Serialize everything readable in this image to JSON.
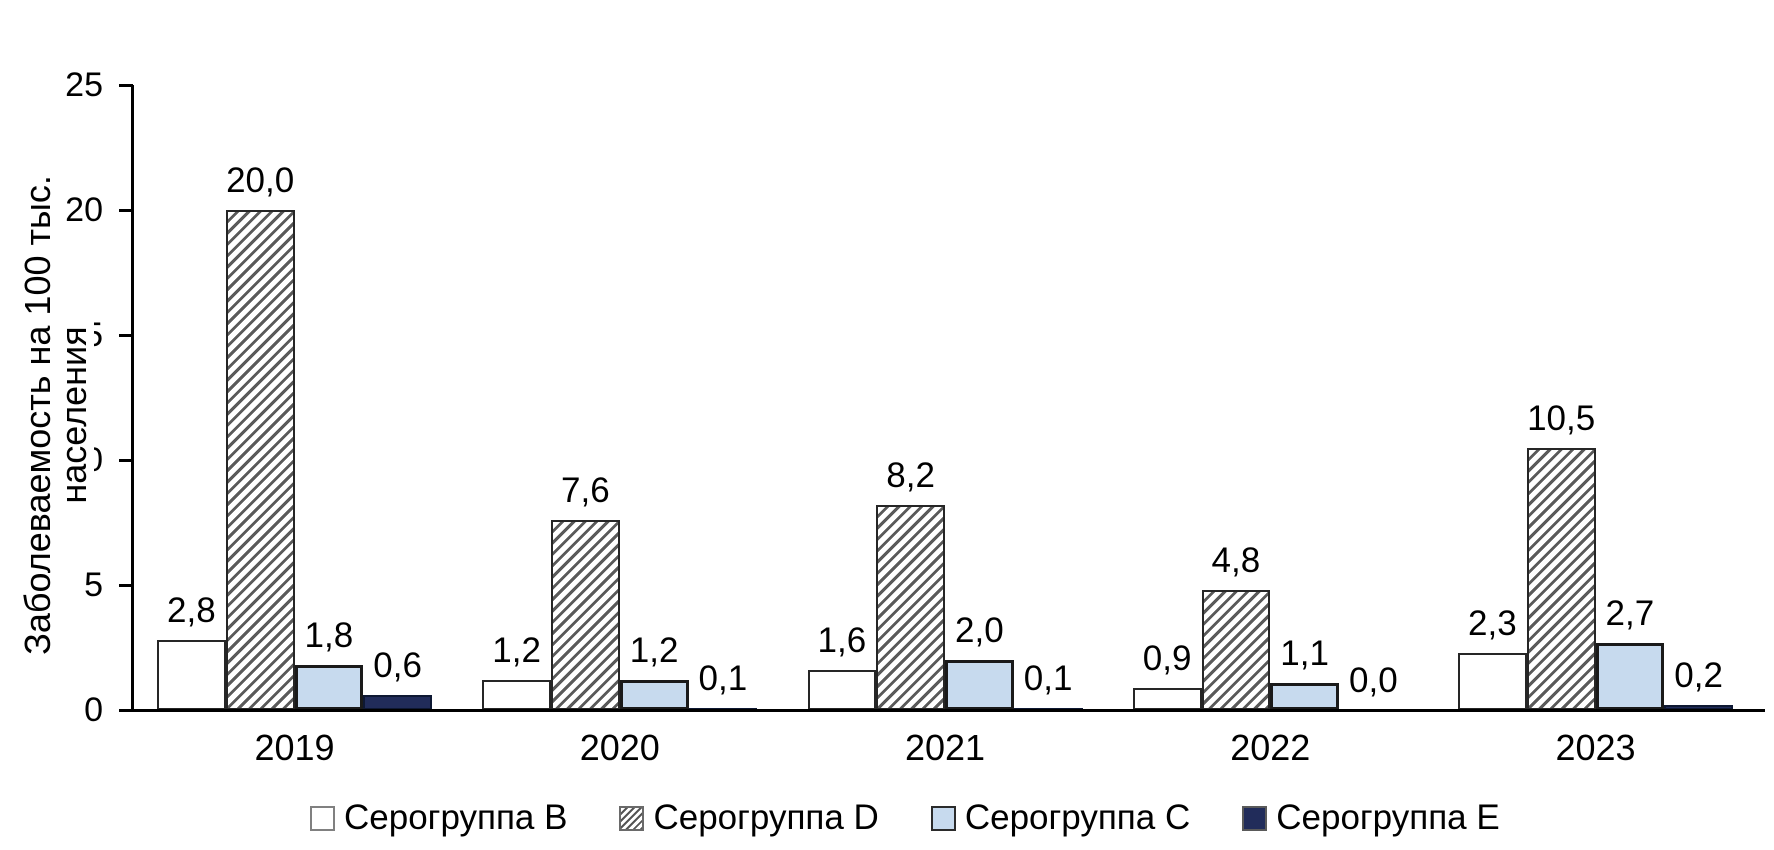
{
  "chart_data": {
    "type": "bar",
    "title": "",
    "ylabel_line1": "Заболеваемость на 100 тыс.",
    "ylabel_line2": "населения",
    "xlabel": "",
    "categories": [
      "2019",
      "2020",
      "2021",
      "2022",
      "2023"
    ],
    "series": [
      {
        "name": "Серогруппа B",
        "style": "white",
        "values": [
          2.8,
          1.2,
          1.6,
          0.9,
          2.3
        ],
        "labels": [
          "2,8",
          "1,2",
          "1,6",
          "0,9",
          "2,3"
        ]
      },
      {
        "name": "Серогруппа D",
        "style": "hatch",
        "values": [
          20.0,
          7.6,
          8.2,
          4.8,
          10.5
        ],
        "labels": [
          "20,0",
          "7,6",
          "8,2",
          "4,8",
          "10,5"
        ]
      },
      {
        "name": "Серогруппа C",
        "style": "lightblue",
        "values": [
          1.8,
          1.2,
          2.0,
          1.1,
          2.7
        ],
        "labels": [
          "1,8",
          "1,2",
          "2,0",
          "1,1",
          "2,7"
        ]
      },
      {
        "name": "Серогруппа E",
        "style": "navy",
        "values": [
          0.6,
          0.1,
          0.1,
          0.0,
          0.2
        ],
        "labels": [
          "0,6",
          "0,1",
          "0,1",
          "0,0",
          "0,2"
        ]
      }
    ],
    "yticks": [
      0,
      5,
      10,
      15,
      20,
      25
    ],
    "ylim": [
      0,
      25
    ],
    "grid": false,
    "legend_position": "bottom",
    "colors": {
      "bar_white_fill": "#ffffff",
      "bar_hatch_stripe": "#5a5a5a",
      "bar_lightblue_fill": "#c7daee",
      "bar_navy_fill": "#212c5a",
      "axis": "#000000",
      "text": "#000000"
    }
  }
}
